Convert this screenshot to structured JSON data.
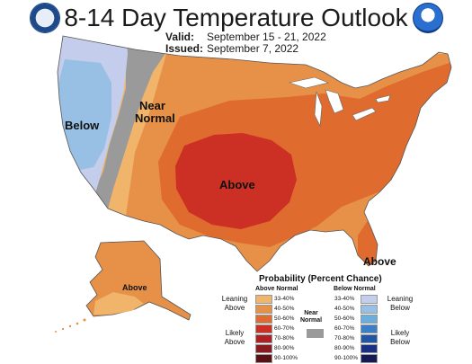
{
  "header": {
    "title": "8-14 Day Temperature Outlook",
    "valid_label": "Valid:",
    "valid_value": "September 15 - 21, 2022",
    "issued_label": "Issued:",
    "issued_value": "September 7, 2022",
    "left_logo_icon": "commerce-seal-icon",
    "right_logo_icon": "noaa-logo-icon"
  },
  "map": {
    "labels": {
      "below": "Below",
      "near_normal_1": "Near",
      "near_normal_2": "Normal",
      "above_center": "Above",
      "above_florida": "Above",
      "above_alaska": "Above"
    },
    "colors": {
      "ocean": "#ffffff",
      "below_33_40": "#c4cdeb",
      "below_40_50": "#98bfe4",
      "near_normal": "#9a9a9a",
      "above_33_40": "#f0b46a",
      "above_40_50": "#e69048",
      "above_50_60": "#df6b2f",
      "above_60_70": "#cc3024"
    }
  },
  "legend": {
    "title": "Probability (Percent Chance)",
    "above_header": "Above Normal",
    "below_header": "Below Normal",
    "leaning_above": "Leaning Above",
    "likely_above": "Likely Above",
    "leaning_below": "Leaning Below",
    "likely_below": "Likely Below",
    "near_normal": "Near Normal",
    "above_bins": [
      {
        "label": "33-40%",
        "color": "#f0b46a"
      },
      {
        "label": "40-50%",
        "color": "#e69048"
      },
      {
        "label": "50-60%",
        "color": "#df6b2f"
      },
      {
        "label": "60-70%",
        "color": "#cc3024"
      },
      {
        "label": "70-80%",
        "color": "#b01f22"
      },
      {
        "label": "80-90%",
        "color": "#8a1a1d"
      },
      {
        "label": "90-100%",
        "color": "#5c1014"
      }
    ],
    "below_bins": [
      {
        "label": "33-40%",
        "color": "#c4cdeb"
      },
      {
        "label": "40-50%",
        "color": "#98bfe4"
      },
      {
        "label": "50-60%",
        "color": "#6aaee0"
      },
      {
        "label": "60-70%",
        "color": "#3a7fc8"
      },
      {
        "label": "70-80%",
        "color": "#1f56a8"
      },
      {
        "label": "80-90%",
        "color": "#1b2f86"
      },
      {
        "label": "90-100%",
        "color": "#141a55"
      }
    ],
    "near_normal_color": "#9a9a9a"
  }
}
